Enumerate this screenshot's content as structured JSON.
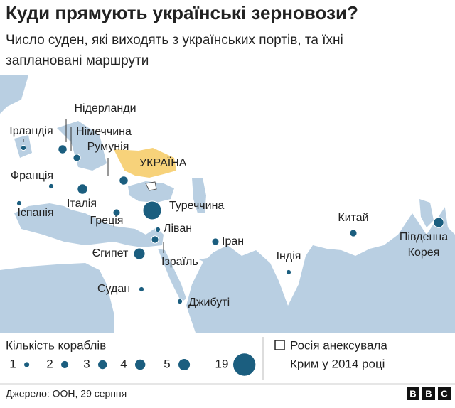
{
  "title": "Куди прямують українські зерновози?",
  "subtitle": [
    "Число суден, які виходять з українських портів, та їхні",
    "заплановані маршрути"
  ],
  "origin_label": "УКРАЇНА",
  "bubble_color": "#1b5e7f",
  "countries": [
    {
      "name": "Ірландія",
      "ships": 1
    },
    {
      "name": "Нідерланди",
      "ships": 3
    },
    {
      "name": "Німеччина",
      "ships": 2
    },
    {
      "name": "Франція",
      "ships": 1
    },
    {
      "name": "Румунія",
      "ships": 3
    },
    {
      "name": "Італія",
      "ships": 4
    },
    {
      "name": "Іспанія",
      "ships": 1
    },
    {
      "name": "Греція",
      "ships": 2
    },
    {
      "name": "Туреччина",
      "ships": 13
    },
    {
      "name": "Ліван",
      "ships": 1
    },
    {
      "name": "Ізраїль",
      "ships": 2
    },
    {
      "name": "Єгипет",
      "ships": 5
    },
    {
      "name": "Судан",
      "ships": 1
    },
    {
      "name": "Джибуті",
      "ships": 1
    },
    {
      "name": "Іран",
      "ships": 2
    },
    {
      "name": "Індія",
      "ships": 1
    },
    {
      "name": "Китай",
      "ships": 2
    },
    {
      "name": "Південна Корея",
      "ships": 4
    }
  ],
  "legend": {
    "title": "Кількість кораблів",
    "items": [
      1,
      2,
      3,
      4,
      5,
      19
    ]
  },
  "note": [
    "Росія анексувала",
    "Крим у 2014 році"
  ],
  "source": "Джерело: ООН, 29 серпня",
  "logo": [
    "B",
    "B",
    "C"
  ]
}
